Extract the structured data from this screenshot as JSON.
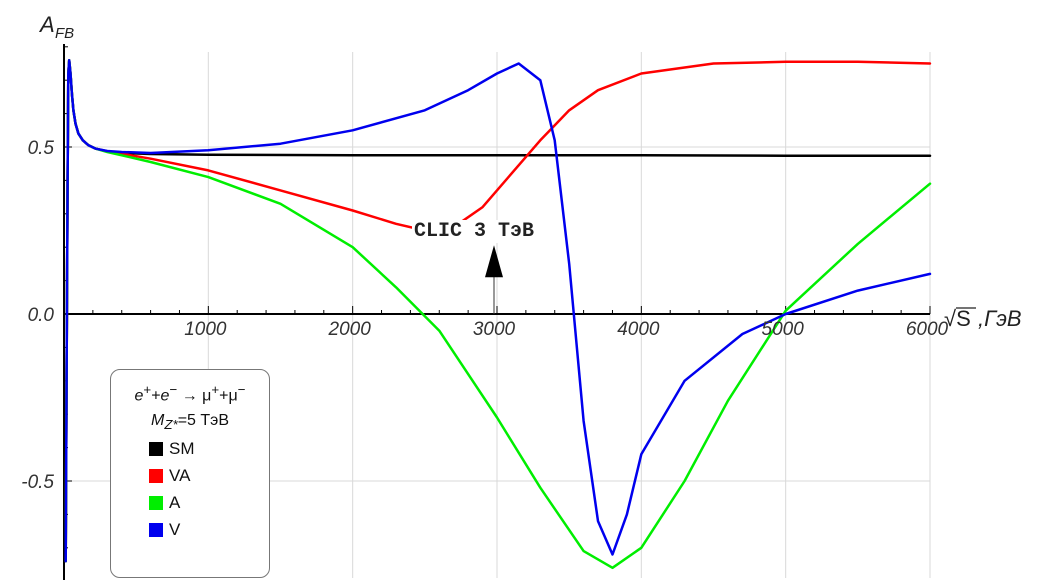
{
  "chart_data": {
    "type": "line",
    "title": "",
    "ylabel": "A_FB",
    "ylabel_main": "A",
    "ylabel_sub": "FB",
    "xlabel": "√S ,ГэВ",
    "xlabel_root": "√S",
    "xlabel_unit": ",ГэВ",
    "xlim": [
      0,
      6000
    ],
    "ylim": [
      -0.78,
      0.88
    ],
    "xticks": [
      1000,
      2000,
      3000,
      4000,
      5000,
      6000
    ],
    "xtick_labels": [
      "1000",
      "2000",
      "3000",
      "4000",
      "5000",
      "6000"
    ],
    "yticks": [
      0.5,
      0.0,
      -0.5
    ],
    "ytick_labels": [
      "0.5",
      "0.0",
      "-0.5"
    ],
    "grid": true,
    "legend": {
      "placement": "bottom-left",
      "process_prefix_e": "e",
      "process_plus": "+",
      "process_minus": "−",
      "process_join": "+",
      "process_arrow": "→",
      "process_mu": "μ",
      "mass_label_prefix": "M",
      "mass_label_sub": "Z*",
      "mass_value": "=5 ТэВ"
    },
    "annotation": {
      "text": "CLIC 3 ТэВ",
      "x": 3000,
      "arrow_from_y": 0.0,
      "arrow_to_y": 0.2
    },
    "series": [
      {
        "name": "SM",
        "color": "#000000",
        "x": [
          12,
          20,
          25,
          30,
          36,
          45,
          55,
          65,
          80,
          100,
          130,
          170,
          220,
          300,
          400,
          600,
          1000,
          2000,
          3000,
          4000,
          5000,
          6000
        ],
        "y": [
          -0.74,
          0.0,
          0.4,
          0.72,
          0.76,
          0.72,
          0.66,
          0.61,
          0.57,
          0.54,
          0.52,
          0.505,
          0.495,
          0.487,
          0.482,
          0.479,
          0.477,
          0.475,
          0.475,
          0.475,
          0.474,
          0.474
        ]
      },
      {
        "name": "VA",
        "color": "#ff0000",
        "x": [
          12,
          20,
          25,
          30,
          36,
          45,
          55,
          65,
          80,
          100,
          130,
          170,
          220,
          300,
          400,
          600,
          1000,
          1500,
          2000,
          2300,
          2500,
          2700,
          2900,
          3100,
          3300,
          3500,
          3700,
          4000,
          4500,
          5000,
          5500,
          6000
        ],
        "y": [
          -0.74,
          0.0,
          0.4,
          0.72,
          0.76,
          0.72,
          0.66,
          0.61,
          0.57,
          0.54,
          0.52,
          0.505,
          0.495,
          0.487,
          0.48,
          0.465,
          0.43,
          0.37,
          0.31,
          0.27,
          0.25,
          0.26,
          0.32,
          0.42,
          0.52,
          0.61,
          0.67,
          0.72,
          0.75,
          0.755,
          0.755,
          0.75
        ]
      },
      {
        "name": "A",
        "color": "#00ee00",
        "x": [
          12,
          20,
          25,
          30,
          36,
          45,
          55,
          65,
          80,
          100,
          130,
          170,
          220,
          300,
          400,
          600,
          1000,
          1500,
          2000,
          2300,
          2600,
          3000,
          3300,
          3600,
          3800,
          4000,
          4300,
          4600,
          5000,
          5500,
          6000
        ],
        "y": [
          -0.74,
          0.0,
          0.4,
          0.72,
          0.76,
          0.72,
          0.66,
          0.61,
          0.57,
          0.54,
          0.52,
          0.505,
          0.495,
          0.485,
          0.475,
          0.455,
          0.41,
          0.33,
          0.2,
          0.08,
          -0.05,
          -0.31,
          -0.52,
          -0.71,
          -0.76,
          -0.7,
          -0.5,
          -0.26,
          0.01,
          0.21,
          0.39
        ]
      },
      {
        "name": "V",
        "color": "#0000ee",
        "x": [
          12,
          20,
          25,
          30,
          36,
          45,
          55,
          65,
          80,
          100,
          130,
          170,
          220,
          300,
          400,
          600,
          1000,
          1500,
          2000,
          2500,
          2800,
          3000,
          3150,
          3300,
          3400,
          3500,
          3600,
          3700,
          3800,
          3900,
          4000,
          4300,
          4700,
          5000,
          5500,
          6000
        ],
        "y": [
          -0.74,
          0.0,
          0.4,
          0.72,
          0.76,
          0.72,
          0.66,
          0.61,
          0.57,
          0.54,
          0.52,
          0.505,
          0.495,
          0.488,
          0.485,
          0.482,
          0.49,
          0.51,
          0.55,
          0.61,
          0.67,
          0.72,
          0.75,
          0.7,
          0.52,
          0.15,
          -0.32,
          -0.62,
          -0.72,
          -0.6,
          -0.42,
          -0.2,
          -0.06,
          0.0,
          0.07,
          0.12
        ]
      }
    ]
  }
}
